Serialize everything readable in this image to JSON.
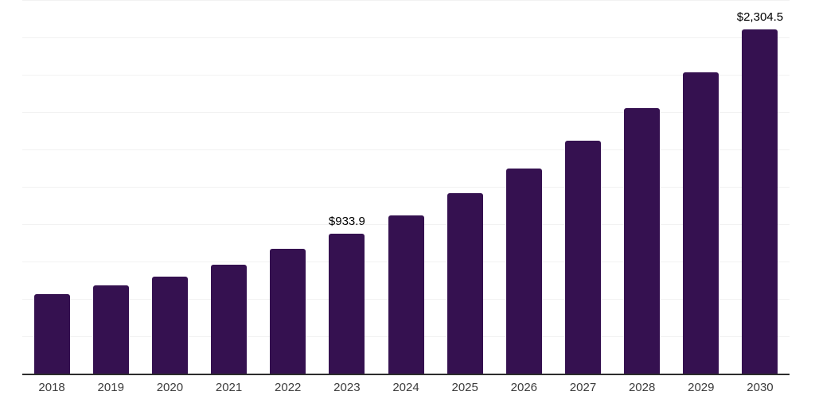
{
  "chart": {
    "background": "#ffffff",
    "bar_color": "#351150",
    "grid_color": "#f2f2f2",
    "axis_color": "#2d2d2d",
    "value_label_color": "#000000",
    "tick_label_color": "#3c3c3c"
  },
  "chart_data": {
    "type": "bar",
    "title": "",
    "xlabel": "",
    "ylabel": "",
    "categories": [
      "2018",
      "2019",
      "2020",
      "2021",
      "2022",
      "2023",
      "2024",
      "2025",
      "2026",
      "2027",
      "2028",
      "2029",
      "2030"
    ],
    "values": [
      530,
      590,
      650,
      730,
      835,
      933.9,
      1060,
      1210,
      1370,
      1560,
      1775,
      2015,
      2304.5
    ],
    "annotations": [
      {
        "category": "2023",
        "text": "$933.9"
      },
      {
        "category": "2030",
        "text": "$2,304.5"
      }
    ],
    "ylim": [
      0,
      2500
    ],
    "gridline_step": 250,
    "grid": "horizontal",
    "y_axis_tick_labels_visible": false,
    "legend": "none"
  }
}
